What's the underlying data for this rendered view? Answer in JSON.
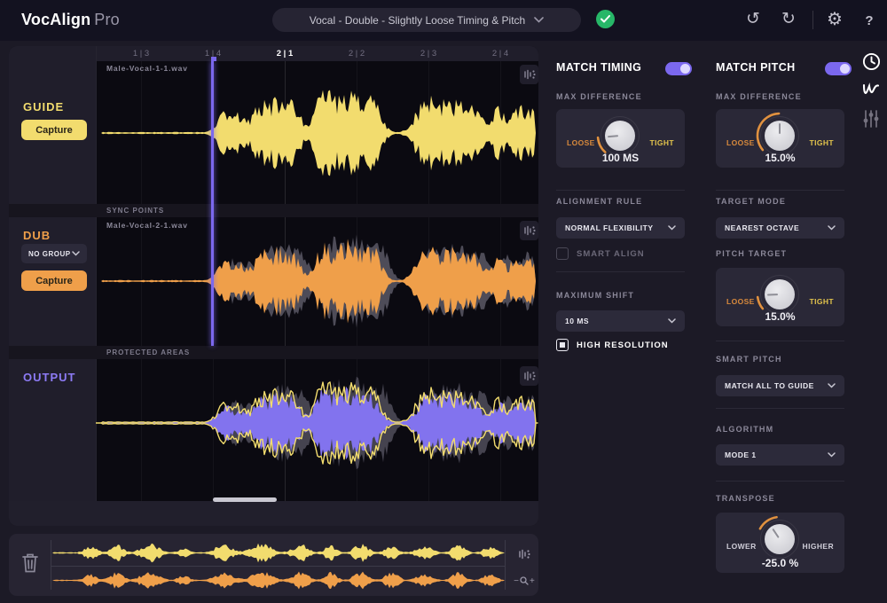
{
  "topbar": {
    "logo_bold": "VocAlign",
    "logo_light": "Pro",
    "preset": "Vocal - Double - Slightly Loose Timing & Pitch",
    "help": "?"
  },
  "ruler": {
    "t0": "1 | 3",
    "t1": "1 | 4",
    "t2": "2 | 1",
    "t3": "2 | 2",
    "t4": "2 | 3",
    "t5": "2 | 4"
  },
  "guide": {
    "label": "GUIDE",
    "capture": "Capture",
    "file": "Male-Vocal-1-1.wav"
  },
  "dub": {
    "label": "DUB",
    "group": "NO GROUP",
    "capture": "Capture",
    "file": "Male-Vocal-2-1.wav"
  },
  "output": {
    "label": "OUTPUT"
  },
  "strips": {
    "sync": "SYNC POINTS",
    "protected": "PROTECTED AREAS"
  },
  "timing": {
    "header": "MATCH TIMING",
    "max_difference_label": "MAX DIFFERENCE",
    "alignment_rule_label": "ALIGNMENT RULE",
    "alignment_rule_value": "NORMAL FLEXIBILITY",
    "smart_align_label": "SMART ALIGN",
    "maximum_shift_label": "MAXIMUM SHIFT",
    "maximum_shift_value": "10 MS",
    "high_resolution_label": "HIGH RESOLUTION"
  },
  "pitch": {
    "header": "MATCH PITCH",
    "max_difference_label": "MAX DIFFERENCE",
    "target_mode_label": "TARGET MODE",
    "target_mode_value": "NEAREST OCTAVE",
    "pitch_target_label": "PITCH TARGET",
    "smart_pitch_label": "SMART PITCH",
    "smart_pitch_value": "MATCH ALL TO GUIDE",
    "algorithm_label": "ALGORITHM",
    "algorithm_value": "MODE 1",
    "transpose_label": "TRANSPOSE"
  },
  "knobs": {
    "timing_max": {
      "left": "LOOSE",
      "right": "TIGHT",
      "value": "100 MS",
      "pointer": -95,
      "arc_start": -138,
      "arc_end": -95
    },
    "pitch_max": {
      "left": "LOOSE",
      "right": "TIGHT",
      "value": "15.0%",
      "pointer": 0,
      "arc_start": -130,
      "arc_end": -2
    },
    "pitch_target": {
      "left": "LOOSE",
      "right": "TIGHT",
      "value": "15.0%",
      "pointer": -92,
      "arc_start": -130,
      "arc_end": -97
    },
    "transpose": {
      "left": "LOWER",
      "right": "HIGHER",
      "value": "-25.0 %",
      "pointer": -34,
      "arc_start": -62,
      "arc_end": -8
    }
  },
  "colors": {
    "accent": "#7b68ee",
    "yellow": "#f2dc6e",
    "orange": "#ef9f4a",
    "purple": "#8273ee",
    "green": "#27b768",
    "shadow": "#4e4c58"
  }
}
